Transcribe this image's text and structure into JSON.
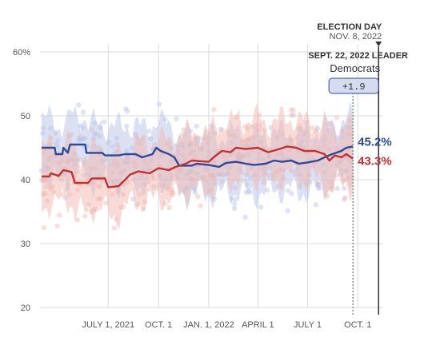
{
  "chart_data": {
    "type": "line",
    "title": "",
    "xlabel": "",
    "ylabel": "",
    "ylim": [
      20,
      60
    ],
    "yticks": [
      20,
      30,
      40,
      50,
      60
    ],
    "ytick_labels": [
      "20",
      "30",
      "40",
      "50",
      "60%"
    ],
    "xlim": [
      "2021-03-01",
      "2022-11-15"
    ],
    "xticks": [
      "2021-07-01",
      "2021-10-01",
      "2022-01-01",
      "2022-04-01",
      "2022-07-01",
      "2022-10-01"
    ],
    "xtick_labels": [
      "JULY 1, 2021",
      "OCT. 1",
      "JAN. 1, 2022",
      "APRIL 1",
      "JULY 1",
      "OCT. 1"
    ],
    "grid": true,
    "series": [
      {
        "color": "#2b4a9e",
        "band_color": "#b8c4e6",
        "end_label": "45.2%",
        "points": [
          [
            "2021-03-01",
            45.0
          ],
          [
            "2021-03-25",
            45.0
          ],
          [
            "2021-03-27",
            44.0
          ],
          [
            "2021-04-08",
            44.0
          ],
          [
            "2021-04-10",
            45.0
          ],
          [
            "2021-04-18",
            44.2
          ],
          [
            "2021-04-22",
            45.5
          ],
          [
            "2021-05-20",
            45.5
          ],
          [
            "2021-05-22",
            44.2
          ],
          [
            "2021-06-20",
            44.2
          ],
          [
            "2021-06-25",
            43.8
          ],
          [
            "2021-07-20",
            43.8
          ],
          [
            "2021-08-01",
            44.0
          ],
          [
            "2021-08-20",
            44.0
          ],
          [
            "2021-09-01",
            43.5
          ],
          [
            "2021-09-20",
            44.0
          ],
          [
            "2021-09-27",
            45.0
          ],
          [
            "2021-10-05",
            44.5
          ],
          [
            "2021-10-20",
            44.0
          ],
          [
            "2021-10-30",
            43.5
          ],
          [
            "2021-11-08",
            42.2
          ],
          [
            "2021-12-01",
            42.2
          ],
          [
            "2021-12-10",
            42.5
          ],
          [
            "2022-01-01",
            42.3
          ],
          [
            "2022-01-20",
            42.0
          ],
          [
            "2022-02-01",
            42.6
          ],
          [
            "2022-02-20",
            42.8
          ],
          [
            "2022-03-10",
            42.5
          ],
          [
            "2022-03-25",
            42.3
          ],
          [
            "2022-04-15",
            42.5
          ],
          [
            "2022-05-01",
            43.0
          ],
          [
            "2022-05-15",
            42.8
          ],
          [
            "2022-06-01",
            43.0
          ],
          [
            "2022-06-15",
            42.5
          ],
          [
            "2022-07-01",
            42.7
          ],
          [
            "2022-07-20",
            43.0
          ],
          [
            "2022-08-01",
            43.5
          ],
          [
            "2022-08-15",
            44.0
          ],
          [
            "2022-09-01",
            44.5
          ],
          [
            "2022-09-10",
            45.0
          ],
          [
            "2022-09-22",
            45.2
          ]
        ]
      },
      {
        "color": "#c62f2f",
        "band_color": "#f2b8b0",
        "end_label": "43.3%",
        "points": [
          [
            "2021-03-01",
            40.5
          ],
          [
            "2021-03-15",
            40.5
          ],
          [
            "2021-03-18",
            41.0
          ],
          [
            "2021-04-01",
            40.6
          ],
          [
            "2021-04-10",
            41.5
          ],
          [
            "2021-04-25",
            41.2
          ],
          [
            "2021-05-01",
            39.5
          ],
          [
            "2021-05-25",
            39.5
          ],
          [
            "2021-06-01",
            40.2
          ],
          [
            "2021-06-25",
            40.2
          ],
          [
            "2021-07-01",
            38.8
          ],
          [
            "2021-07-20",
            39.0
          ],
          [
            "2021-08-01",
            40.0
          ],
          [
            "2021-08-10",
            40.8
          ],
          [
            "2021-08-25",
            41.3
          ],
          [
            "2021-09-15",
            41.0
          ],
          [
            "2021-10-01",
            41.8
          ],
          [
            "2021-10-20",
            41.5
          ],
          [
            "2021-11-01",
            42.0
          ],
          [
            "2021-11-20",
            42.5
          ],
          [
            "2021-12-01",
            43.0
          ],
          [
            "2022-01-01",
            42.8
          ],
          [
            "2022-01-10",
            43.5
          ],
          [
            "2022-01-25",
            44.5
          ],
          [
            "2022-02-10",
            44.3
          ],
          [
            "2022-02-20",
            45.0
          ],
          [
            "2022-03-10",
            44.8
          ],
          [
            "2022-04-01",
            45.0
          ],
          [
            "2022-04-20",
            44.3
          ],
          [
            "2022-05-10",
            44.8
          ],
          [
            "2022-05-25",
            45.2
          ],
          [
            "2022-06-10",
            45.0
          ],
          [
            "2022-06-25",
            44.5
          ],
          [
            "2022-07-15",
            44.5
          ],
          [
            "2022-08-01",
            44.0
          ],
          [
            "2022-08-10",
            43.0
          ],
          [
            "2022-08-20",
            43.8
          ],
          [
            "2022-09-01",
            43.5
          ],
          [
            "2022-09-10",
            44.0
          ],
          [
            "2022-09-22",
            43.3
          ]
        ]
      }
    ],
    "annotations": {
      "election_title": "ELECTION DAY",
      "election_date": "NOV. 8, 2022",
      "election_day": "2022-11-08",
      "leader_date": "2022-09-22",
      "leader_title": "SEPT. 22, 2022 LEADER",
      "leader_party": "Democrats",
      "leader_margin": "+1.9"
    }
  }
}
